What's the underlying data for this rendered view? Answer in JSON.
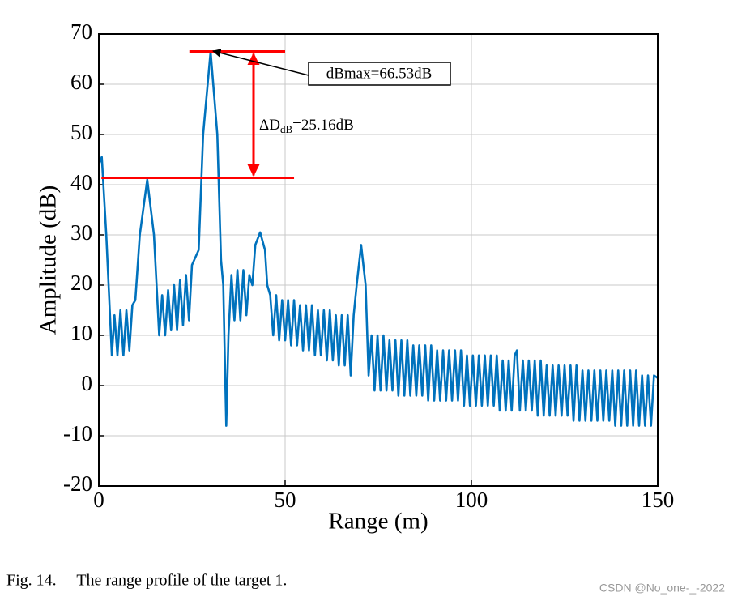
{
  "chart_data": {
    "type": "line",
    "xlabel": "Range (m)",
    "ylabel": "Amplitude (dB)",
    "xlim": [
      0,
      150
    ],
    "xticks": [
      0,
      50,
      100,
      150
    ],
    "ylim": [
      -20,
      70
    ],
    "yticks": [
      -20,
      -10,
      0,
      10,
      20,
      30,
      40,
      50,
      60,
      70
    ],
    "grid": true,
    "color": "#0072bd",
    "x": [
      0,
      0.8,
      2,
      3.5,
      4.2,
      5.0,
      5.8,
      6.6,
      7.4,
      8.2,
      9.0,
      9.8,
      11,
      13,
      14.8,
      16.2,
      17,
      17.8,
      18.6,
      19.4,
      20.2,
      21,
      21.8,
      22.6,
      23.4,
      24.2,
      25,
      25.6,
      26.8,
      28,
      30,
      31.8,
      32.8,
      33.4,
      34.2,
      34.8,
      35.6,
      36.4,
      37.2,
      38,
      38.8,
      39.6,
      40.4,
      41.2,
      42,
      43.3,
      44.6,
      45.2,
      46,
      46.8,
      47.6,
      48.4,
      49.2,
      50,
      50.8,
      51.6,
      52.4,
      53.2,
      54,
      54.8,
      55.6,
      56.4,
      57.2,
      58,
      58.8,
      59.6,
      60.4,
      61.2,
      62,
      62.8,
      63.6,
      64.4,
      65.2,
      66,
      66.8,
      67.6,
      68.4,
      69.2,
      70.4,
      71.6,
      72.4,
      73.2,
      74,
      74.8,
      75.6,
      76.4,
      77.2,
      78,
      78.8,
      79.6,
      80.4,
      81.2,
      82,
      82.8,
      83.6,
      84.4,
      85.2,
      86,
      86.8,
      87.6,
      88.4,
      89.2,
      90,
      90.8,
      91.6,
      92.4,
      93.2,
      94,
      94.8,
      95.6,
      96.4,
      97.2,
      98,
      98.8,
      99.6,
      100.4,
      101.2,
      102,
      102.8,
      103.6,
      104.4,
      105.2,
      106,
      106.8,
      107.6,
      108.4,
      109.2,
      110,
      110.8,
      111.6,
      112.2,
      113,
      113.8,
      114.6,
      115.4,
      116.2,
      117,
      117.8,
      118.6,
      119.4,
      120.2,
      121,
      121.8,
      122.6,
      123.4,
      124.2,
      125,
      125.8,
      126.6,
      127.4,
      128.2,
      129,
      129.8,
      130.6,
      131.4,
      132.2,
      133,
      133.8,
      134.6,
      135.4,
      136.2,
      137,
      137.8,
      138.6,
      139.4,
      140.2,
      141,
      141.8,
      142.6,
      143.4,
      144.2,
      145,
      145.8,
      146.6,
      147.4,
      148.2,
      149,
      150
    ],
    "values": [
      44,
      45.5,
      30,
      6,
      14,
      6,
      15,
      6,
      15,
      7,
      16,
      17,
      30,
      41,
      30,
      10,
      18,
      10,
      19,
      11,
      20,
      11,
      21,
      12,
      22,
      13,
      24,
      25,
      27,
      50,
      66.5,
      50,
      25,
      20,
      -8,
      10,
      22,
      13,
      23,
      13,
      23,
      14,
      22,
      20,
      28,
      30.5,
      27,
      20,
      18,
      10,
      18,
      9,
      17,
      9,
      17,
      8,
      17,
      8,
      16,
      7,
      16,
      7,
      16,
      6,
      15,
      6,
      15,
      5,
      15,
      5,
      14,
      4,
      14,
      4,
      14,
      2,
      14,
      20,
      28,
      20,
      2,
      10,
      -1,
      10,
      -1,
      10,
      -1,
      9,
      -1,
      9,
      -2,
      9,
      -2,
      9,
      -2,
      8,
      -2,
      8,
      -2,
      8,
      -3,
      8,
      -3,
      7,
      -3,
      7,
      -3,
      7,
      -3,
      7,
      -3,
      7,
      -4,
      6,
      -4,
      6,
      -4,
      6,
      -4,
      6,
      -4,
      6,
      -4,
      6,
      -5,
      5,
      -5,
      5,
      -5,
      6,
      7,
      -5,
      5,
      -5,
      5,
      -5,
      5,
      -6,
      5,
      -6,
      4,
      -6,
      4,
      -6,
      4,
      -6,
      4,
      -6,
      4,
      -7,
      4,
      -7,
      3,
      -7,
      3,
      -7,
      3,
      -7,
      3,
      -7,
      3,
      -7,
      3,
      -8,
      3,
      -8,
      3,
      -8,
      3,
      -8,
      3,
      -8,
      2,
      -8,
      2,
      -8,
      2,
      1.5
    ],
    "reference_lines": [
      {
        "y": 66.53,
        "x": [
          24.3,
          50
        ]
      },
      {
        "y": 41.37,
        "x": [
          0.7,
          52.4
        ]
      }
    ],
    "annotations": {
      "max_label": "dBmax=66.53dB",
      "delta_label": {
        "text": "ΔD",
        "sub": "dB",
        "rest": "=25.16dB"
      }
    }
  },
  "caption": "Fig. 14.     The range profile of the target 1.",
  "watermark": "CSDN @No_one-_-2022"
}
